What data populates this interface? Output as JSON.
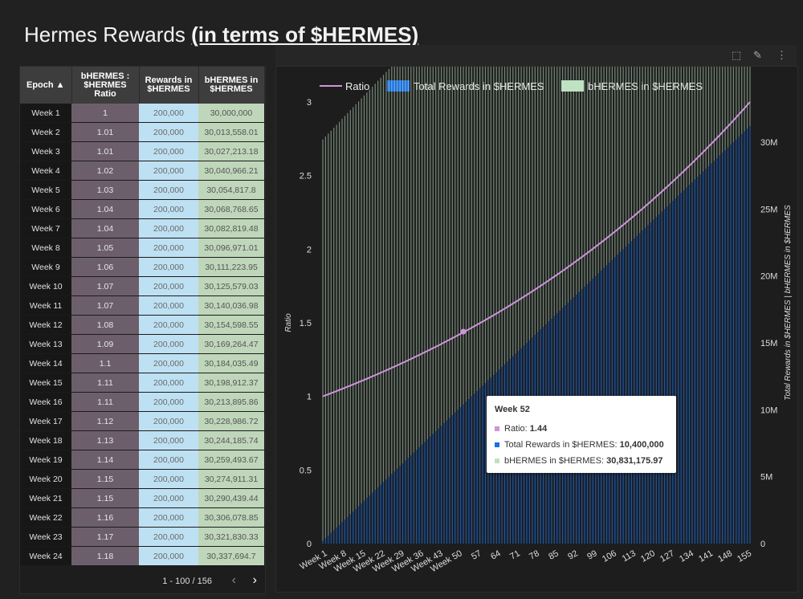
{
  "page": {
    "title_prefix": "Hermes Rewards ",
    "title_link": "(in terms of $HERMES)"
  },
  "table": {
    "headers": [
      "Epoch ▲",
      "bHERMES : $HERMES Ratio",
      "Rewards in $HERMES",
      "bHERMES in $HERMES"
    ],
    "rows": [
      [
        "Week 1",
        "1",
        "200,000",
        "30,000,000"
      ],
      [
        "Week 2",
        "1.01",
        "200,000",
        "30,013,558.01"
      ],
      [
        "Week 3",
        "1.01",
        "200,000",
        "30,027,213.18"
      ],
      [
        "Week 4",
        "1.02",
        "200,000",
        "30,040,966.21"
      ],
      [
        "Week 5",
        "1.03",
        "200,000",
        "30,054,817.8"
      ],
      [
        "Week 6",
        "1.04",
        "200,000",
        "30,068,768.65"
      ],
      [
        "Week 7",
        "1.04",
        "200,000",
        "30,082,819.48"
      ],
      [
        "Week 8",
        "1.05",
        "200,000",
        "30,096,971.01"
      ],
      [
        "Week 9",
        "1.06",
        "200,000",
        "30,111,223.95"
      ],
      [
        "Week 10",
        "1.07",
        "200,000",
        "30,125,579.03"
      ],
      [
        "Week 11",
        "1.07",
        "200,000",
        "30,140,036.98"
      ],
      [
        "Week 12",
        "1.08",
        "200,000",
        "30,154,598.55"
      ],
      [
        "Week 13",
        "1.09",
        "200,000",
        "30,169,264.47"
      ],
      [
        "Week 14",
        "1.1",
        "200,000",
        "30,184,035.49"
      ],
      [
        "Week 15",
        "1.11",
        "200,000",
        "30,198,912.37"
      ],
      [
        "Week 16",
        "1.11",
        "200,000",
        "30,213,895.86"
      ],
      [
        "Week 17",
        "1.12",
        "200,000",
        "30,228,986.72"
      ],
      [
        "Week 18",
        "1.13",
        "200,000",
        "30,244,185.74"
      ],
      [
        "Week 19",
        "1.14",
        "200,000",
        "30,259,493.67"
      ],
      [
        "Week 20",
        "1.15",
        "200,000",
        "30,274,911.31"
      ],
      [
        "Week 21",
        "1.15",
        "200,000",
        "30,290,439.44"
      ],
      [
        "Week 22",
        "1.16",
        "200,000",
        "30,306,078.85"
      ],
      [
        "Week 23",
        "1.17",
        "200,000",
        "30,321,830.33"
      ],
      [
        "Week 24",
        "1.18",
        "200,000",
        "30,337,694.7"
      ]
    ],
    "pagination": "1 - 100 / 156",
    "prev": "‹",
    "next": "›"
  },
  "toolbar": {
    "select": "⬚",
    "edit": "✎",
    "more": "⋮"
  },
  "tooltip": {
    "title": "Week 52",
    "ratio_label": "Ratio: ",
    "ratio_value": "1.44",
    "rewards_label": "Total Rewards in $HERMES: ",
    "rewards_value": "10,400,000",
    "bhermes_label": "bHERMES in $HERMES: ",
    "bhermes_value": "30,831,175.97"
  },
  "chart_data": {
    "type": "combo",
    "x_count": 156,
    "x_tick_labels": [
      "Week 1",
      "Week 8",
      "Week 15",
      "Week 22",
      "Week 29",
      "Week 36",
      "Week 43",
      "Week 50",
      "57",
      "64",
      "71",
      "78",
      "85",
      "92",
      "99",
      "106",
      "113",
      "120",
      "127",
      "134",
      "141",
      "148",
      "155"
    ],
    "x_tick_weeks": [
      1,
      8,
      15,
      22,
      29,
      36,
      43,
      50,
      57,
      64,
      71,
      78,
      85,
      92,
      99,
      106,
      113,
      120,
      127,
      134,
      141,
      148,
      155
    ],
    "series": [
      {
        "name": "Ratio",
        "kind": "line",
        "axis": "left",
        "color": "#cf94dc",
        "start": 1.0,
        "end": 3.0
      },
      {
        "name": "Total Rewards in $HERMES",
        "kind": "bar",
        "axis": "right",
        "color": "#1c6fe6",
        "per_week": 200000
      },
      {
        "name": "bHERMES in $HERMES",
        "kind": "bar",
        "axis": "right",
        "color": "#bfe2c2",
        "start": 30000000,
        "end": 33000000
      }
    ],
    "highlight": {
      "week": 52,
      "ratio": 1.44,
      "rewards": 10400000,
      "bhermes": 30831175.97
    },
    "y_left": {
      "label": "Ratio",
      "min": 0,
      "max": 3,
      "ticks": [
        0,
        0.5,
        1,
        1.5,
        2,
        2.5,
        3
      ],
      "tick_labels": [
        "0",
        "0.5",
        "1",
        "1.5",
        "2",
        "2.5",
        "3"
      ]
    },
    "y_right": {
      "label": "Total Rewards in $HERMES | bHERMES in $HERMES",
      "min": 0,
      "max": 33000000,
      "ticks": [
        0,
        5000000,
        10000000,
        15000000,
        20000000,
        25000000,
        30000000
      ],
      "tick_labels": [
        "0",
        "5M",
        "10M",
        "15M",
        "20M",
        "25M",
        "30M"
      ]
    },
    "legend": [
      "Ratio",
      "Total Rewards in $HERMES",
      "bHERMES in $HERMES"
    ],
    "legend_position": "top-left"
  }
}
